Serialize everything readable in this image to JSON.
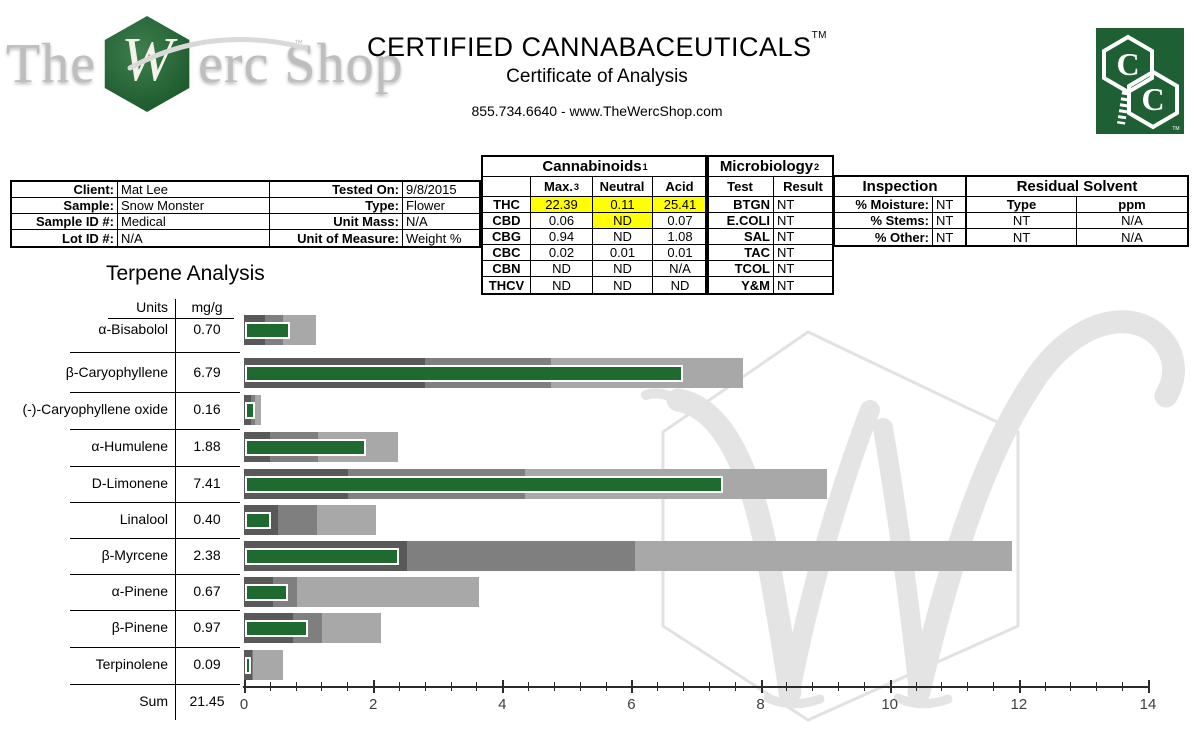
{
  "brand": {
    "the": "The",
    "w": "W",
    "rest": "erc Shop",
    "tm": "™"
  },
  "header": {
    "title": "CERTIFIED CANNABACEUTICALS",
    "title_tm": "TM",
    "subtitle": "Certificate of Analysis",
    "contact": "855.734.6640 - www.TheWercShop.com"
  },
  "cc_logo": {
    "c1": "C",
    "c2": "C",
    "tm": "TM"
  },
  "info": {
    "rows": [
      {
        "l1": "Client:",
        "v1": "Mat Lee",
        "l2": "Tested On:",
        "v2": "9/8/2015"
      },
      {
        "l1": "Sample:",
        "v1": "Snow Monster",
        "l2": "Type:",
        "v2": "Flower"
      },
      {
        "l1": "Sample ID #:",
        "v1": "Medical",
        "l2": "Unit Mass:",
        "v2": "N/A"
      },
      {
        "l1": "Lot ID #:",
        "v1": "N/A",
        "l2": "Unit of Measure:",
        "v2": "Weight %"
      }
    ]
  },
  "cannabinoids": {
    "title": "Cannabinoids",
    "sup": "1",
    "columns": [
      {
        "label": "Max.",
        "sup": "3"
      },
      {
        "label": "Neutral",
        "sup": ""
      },
      {
        "label": "Acid",
        "sup": ""
      }
    ],
    "rows": [
      {
        "name": "THC",
        "values": [
          "22.39",
          "0.11",
          "25.41"
        ],
        "highlight": [
          true,
          true,
          true
        ]
      },
      {
        "name": "CBD",
        "values": [
          "0.06",
          "ND",
          "0.07"
        ],
        "highlight": [
          false,
          true,
          false
        ]
      },
      {
        "name": "CBG",
        "values": [
          "0.94",
          "ND",
          "1.08"
        ],
        "highlight": [
          false,
          false,
          false
        ]
      },
      {
        "name": "CBC",
        "values": [
          "0.02",
          "0.01",
          "0.01"
        ],
        "highlight": [
          false,
          false,
          false
        ]
      },
      {
        "name": "CBN",
        "values": [
          "ND",
          "ND",
          "N/A"
        ],
        "highlight": [
          false,
          false,
          false
        ]
      },
      {
        "name": "THCV",
        "values": [
          "ND",
          "ND",
          "ND"
        ],
        "highlight": [
          false,
          false,
          false
        ]
      }
    ]
  },
  "microbiology": {
    "title": "Microbiology",
    "sup": "2",
    "columns": [
      "Test",
      "Result"
    ],
    "rows": [
      {
        "test": "BTGN",
        "result": "NT"
      },
      {
        "test": "E.COLI",
        "result": "NT"
      },
      {
        "test": "SAL",
        "result": "NT"
      },
      {
        "test": "TAC",
        "result": "NT"
      },
      {
        "test": "TCOL",
        "result": "NT"
      },
      {
        "test": "Y&M",
        "result": "NT"
      }
    ]
  },
  "inspection": {
    "title": "Inspection",
    "rows": [
      {
        "label": "% Moisture:",
        "value": "NT"
      },
      {
        "label": "% Stems:",
        "value": "NT"
      },
      {
        "label": "% Other:",
        "value": "NT"
      }
    ]
  },
  "residual_solvent": {
    "title": "Residual Solvent",
    "columns": [
      "Type",
      "ppm"
    ],
    "rows": [
      {
        "type": "NT",
        "ppm": "N/A"
      },
      {
        "type": "NT",
        "ppm": "N/A"
      }
    ]
  },
  "terpenes": {
    "title": "Terpene Analysis",
    "units_label": "Units",
    "units_value": "mg/g",
    "sum_label": "Sum",
    "sum_value": "21.45"
  },
  "chart_data": {
    "type": "bar",
    "title": "Terpene Analysis",
    "xlabel": "mg/g",
    "xlim": [
      0,
      14
    ],
    "x_major_tick": 2,
    "x_minor_tick": 0.4,
    "x_tick_labels": [
      "0",
      "2",
      "4",
      "6",
      "8",
      "10",
      "12",
      "14"
    ],
    "grid": false,
    "categories": [
      "α-Bisabolol",
      "β-Caryophyllene",
      "(-)-Caryophyllene oxide",
      "α-Humulene",
      "D-Limonene",
      "Linalool",
      "β-Myrcene",
      "α-Pinene",
      "β-Pinene",
      "Terpinolene"
    ],
    "value_labels": [
      "0.70",
      "6.79",
      "0.16",
      "1.88",
      "7.41",
      "0.40",
      "2.38",
      "0.67",
      "0.97",
      "0.09"
    ],
    "series": [
      {
        "name": "sample-value-green",
        "color": "#1f6b2f",
        "values": [
          0.7,
          6.79,
          0.16,
          1.88,
          7.41,
          0.4,
          2.38,
          0.67,
          0.97,
          0.09
        ]
      },
      {
        "name": "range-dark-gray",
        "color": "#595959",
        "values": [
          0.32,
          2.8,
          0.11,
          0.4,
          1.61,
          0.52,
          2.52,
          0.45,
          0.76,
          0.12
        ]
      },
      {
        "name": "range-mid-gray",
        "color": "#7f7f7f",
        "values": [
          0.6,
          4.76,
          0.17,
          1.15,
          4.35,
          1.13,
          6.05,
          0.82,
          1.21,
          0.14
        ]
      },
      {
        "name": "range-light-gray",
        "color": "#a8a8a8",
        "values": [
          1.11,
          7.73,
          0.26,
          2.38,
          9.03,
          2.05,
          11.9,
          3.64,
          2.12,
          0.61
        ]
      }
    ],
    "sum": 21.45
  },
  "colors": {
    "bar_green": "#1f6b2f",
    "range_dark": "#595959",
    "range_mid": "#7f7f7f",
    "range_light": "#a8a8a8",
    "highlight_yellow": "#ffff00",
    "logo_green": "#1e6034",
    "watermark_gray": "#e4e4e4"
  }
}
